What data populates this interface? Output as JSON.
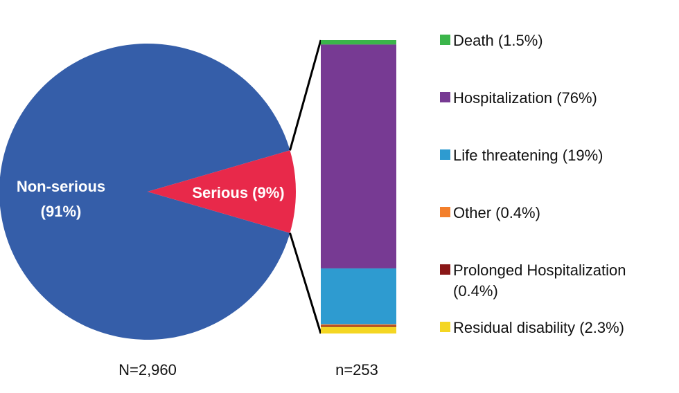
{
  "chart_data": [
    {
      "type": "pie",
      "caption": "N=2,960",
      "slices": [
        {
          "name": "Non-serious",
          "label_line1": "Non-serious",
          "label_line2": "(91%)",
          "value": 91,
          "color": "#355EA9"
        },
        {
          "name": "Serious",
          "label_line1": "Serious (9%)",
          "label_line2": "",
          "value": 9,
          "color": "#E8294A"
        }
      ]
    },
    {
      "type": "bar",
      "stacked": true,
      "caption": "n=253",
      "categories": [
        "Serious"
      ],
      "series": [
        {
          "name": "Death",
          "legend": "Death (1.5%)",
          "legend_line2": "",
          "value": 1.5,
          "color": "#3BB54A"
        },
        {
          "name": "Hospitalization",
          "legend": "Hospitalization (76%)",
          "legend_line2": "",
          "value": 76,
          "color": "#773A93"
        },
        {
          "name": "Life threatening",
          "legend": "Life threatening (19%)",
          "legend_line2": "",
          "value": 19,
          "color": "#2E9BD0"
        },
        {
          "name": "Other",
          "legend": "Other (0.4%)",
          "legend_line2": "",
          "value": 0.4,
          "color": "#F37F2B"
        },
        {
          "name": "Prolonged Hospitalization",
          "legend": "Prolonged Hospitalization",
          "legend_line2": "(0.4%)",
          "value": 0.4,
          "color": "#8A1717"
        },
        {
          "name": "Residual disability",
          "legend": "Residual disability (2.3%)",
          "legend_line2": "",
          "value": 2.3,
          "color": "#F4D623"
        }
      ]
    }
  ]
}
